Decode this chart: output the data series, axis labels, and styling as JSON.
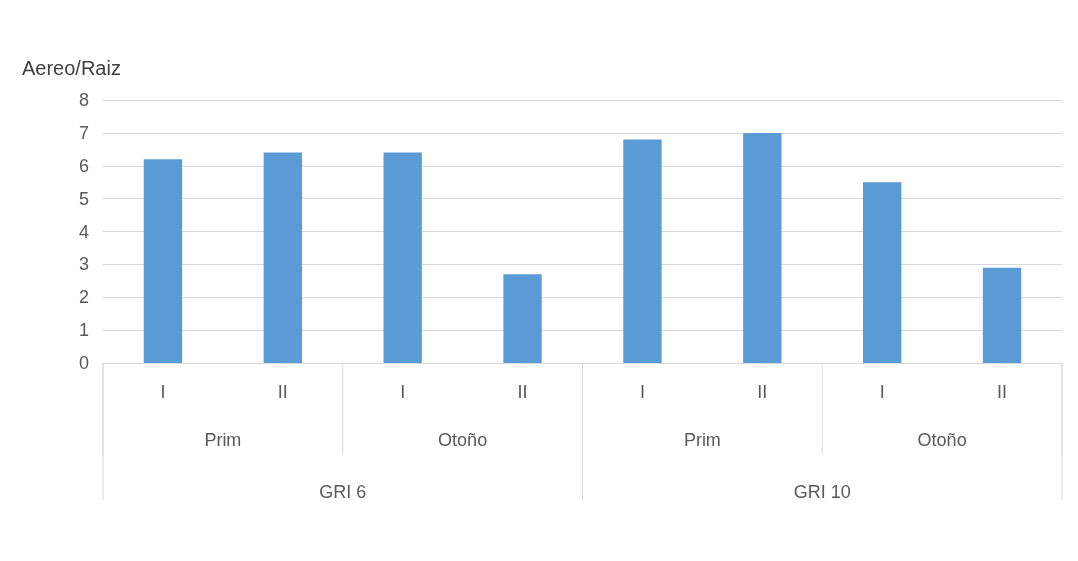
{
  "chart_data": {
    "type": "bar",
    "ylabel": "Aereo/Raiz",
    "categories": [
      "I",
      "II",
      "I",
      "II",
      "I",
      "II",
      "I",
      "II"
    ],
    "values": [
      6.2,
      6.4,
      6.4,
      2.7,
      6.8,
      7.0,
      5.5,
      2.9
    ],
    "color": "#5b9bd5",
    "ylim": [
      0,
      8
    ],
    "yticks": [
      0,
      1,
      2,
      3,
      4,
      5,
      6,
      7,
      8
    ],
    "grid": "y",
    "annotations": [
      "Prim",
      "Otoño",
      "Prim",
      "Otoño",
      "GRI 6",
      "GRI 10"
    ]
  }
}
